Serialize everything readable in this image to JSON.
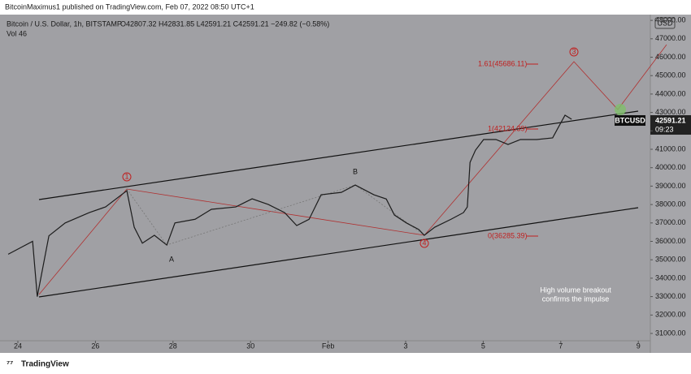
{
  "header": {
    "publisher": "BitcoinMaximus1 published on TradingView.com, Feb 07, 2022 08:50 UTC+1",
    "brand": "TradingView"
  },
  "chart_data": {
    "type": "line",
    "title": "Bitcoin / U.S. Dollar, 1h, BITSTAMP",
    "ohlc": "O42807.32 H42831.85 L42591.21 C42591.21 −249.82 (−0.58%)",
    "volume_label": "Vol 46",
    "currency": "USD",
    "symbol": "BTCUSD",
    "last_price": "42591.21",
    "countdown": "09:23",
    "color": "#1c1c1c",
    "x": [
      -0.25,
      0.38,
      0.5,
      0.8,
      1.22,
      1.84,
      2.26,
      2.81,
      3.0,
      3.21,
      3.52,
      3.84,
      4.05,
      4.57,
      4.99,
      5.62,
      6.04,
      6.46,
      6.88,
      7.19,
      7.51,
      7.82,
      8.34,
      8.7,
      9.18,
      9.5,
      9.71,
      10.02,
      10.34,
      10.48,
      10.75,
      11.17,
      11.49,
      11.59,
      11.66,
      11.8,
      12.01,
      12.33,
      12.64,
      12.96,
      13.38,
      13.79,
      13.96,
      14.11,
      14.28
    ],
    "values": [
      35300,
      36000,
      33000,
      36300,
      37000,
      37560,
      37870,
      38750,
      36770,
      35900,
      36330,
      35800,
      37000,
      37200,
      37740,
      37870,
      38310,
      38000,
      37560,
      36860,
      37200,
      38530,
      38660,
      39060,
      38530,
      38300,
      37430,
      37000,
      36640,
      36330,
      36770,
      37200,
      37560,
      37870,
      40290,
      40950,
      41530,
      41530,
      41260,
      41530,
      41530,
      41620,
      42280,
      42850,
      42630
    ],
    "xlim": [
      -0.461,
      16.31
    ],
    "ylim": [
      30604,
      48313
    ],
    "xticks": [
      {
        "value": 0,
        "label": "24"
      },
      {
        "value": 2,
        "label": "26"
      },
      {
        "value": 4,
        "label": "28"
      },
      {
        "value": 6,
        "label": "30"
      },
      {
        "value": 8,
        "label": "Feb"
      },
      {
        "value": 10,
        "label": "3"
      },
      {
        "value": 12,
        "label": "5"
      },
      {
        "value": 14,
        "label": "7"
      },
      {
        "value": 16,
        "label": "9"
      }
    ],
    "yticks": [
      {
        "value": 31000,
        "label": "31000.00"
      },
      {
        "value": 32000,
        "label": "32000.00"
      },
      {
        "value": 33000,
        "label": "33000.00"
      },
      {
        "value": 34000,
        "label": "34000.00"
      },
      {
        "value": 35000,
        "label": "35000.00"
      },
      {
        "value": 36000,
        "label": "36000.00"
      },
      {
        "value": 37000,
        "label": "37000.00"
      },
      {
        "value": 38000,
        "label": "38000.00"
      },
      {
        "value": 39000,
        "label": "39000.00"
      },
      {
        "value": 40000,
        "label": "40000.00"
      },
      {
        "value": 41000,
        "label": "41000.00"
      },
      {
        "value": 42000,
        "label": "42000.00"
      },
      {
        "value": 43000,
        "label": "43000.00"
      },
      {
        "value": 44000,
        "label": "44000.00"
      },
      {
        "value": 45000,
        "label": "45000.00"
      },
      {
        "value": 46000,
        "label": "46000.00"
      },
      {
        "value": 47000,
        "label": "47000.00"
      },
      {
        "value": 48000,
        "label": "48000.00"
      }
    ],
    "annotations": [
      "1.61(45686.11)",
      "1(42124.39)",
      "0(36285.39)",
      "1",
      "3",
      "4",
      "A",
      "B",
      "High volume breakout",
      "confirms the impulse"
    ]
  }
}
